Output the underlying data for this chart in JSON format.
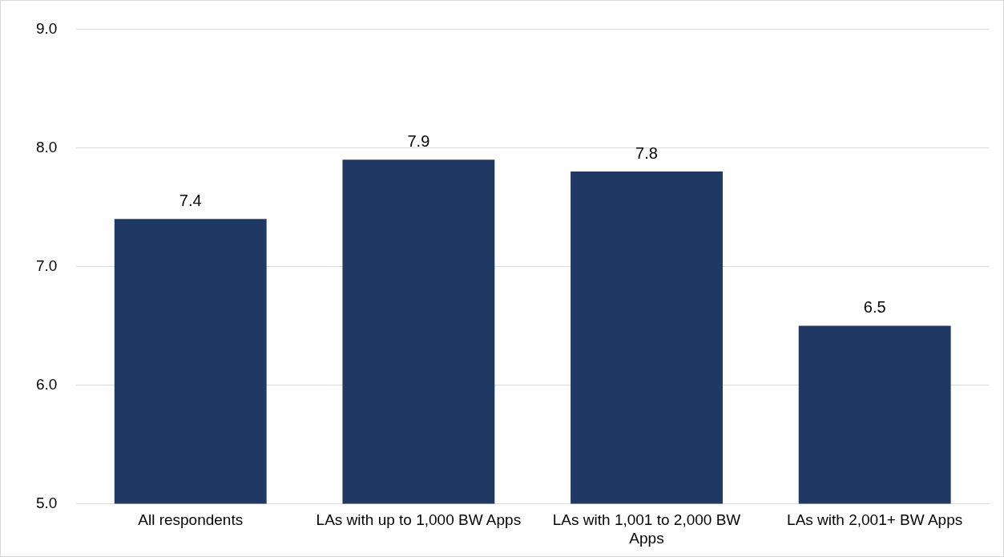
{
  "chart_data": {
    "type": "bar",
    "categories": [
      "All respondents",
      "LAs with up to 1,000 BW Apps",
      "LAs with 1,001 to 2,000 BW Apps",
      "LAs with 2,001+ BW Apps"
    ],
    "values": [
      7.4,
      7.9,
      7.8,
      6.5
    ],
    "color": "#203864",
    "ylim": [
      5,
      9
    ],
    "yticks": [
      {
        "value": 5,
        "label": "5.0"
      },
      {
        "value": 6,
        "label": "6.0"
      },
      {
        "value": 7,
        "label": "7.0"
      },
      {
        "value": 8,
        "label": "8.0"
      },
      {
        "value": 9,
        "label": "9.0"
      }
    ],
    "grid": "y",
    "legend": false,
    "data_labels": true
  }
}
